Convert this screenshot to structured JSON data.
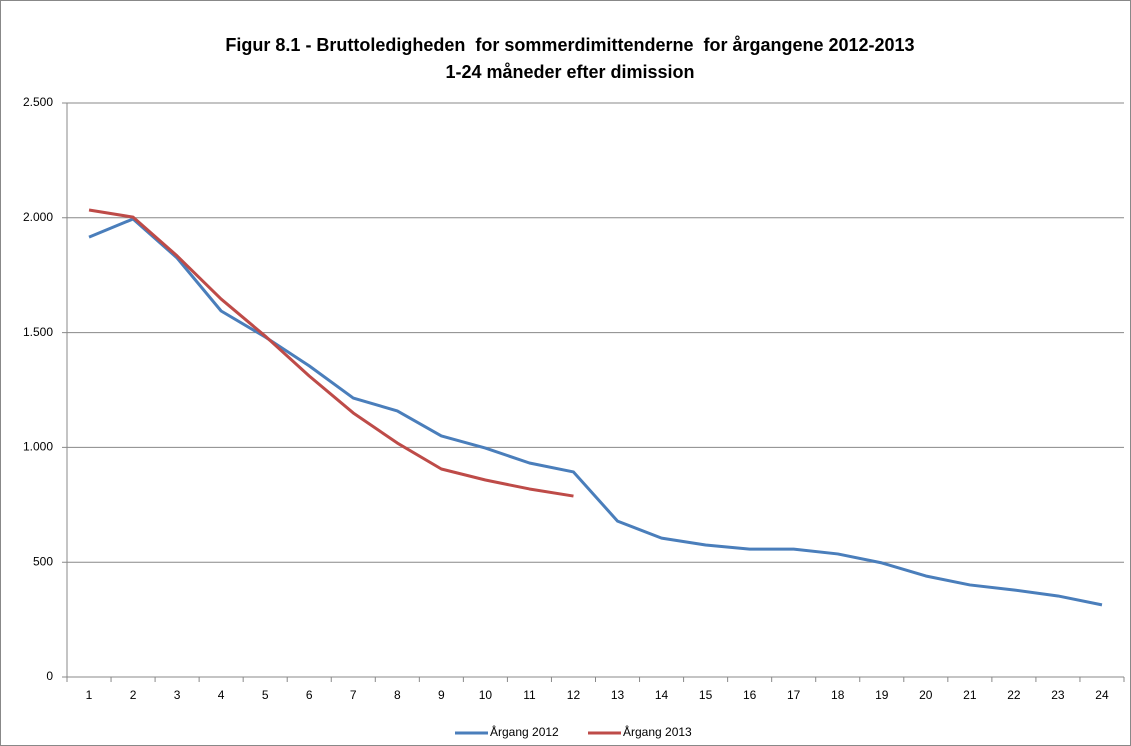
{
  "chart_data": {
    "type": "line",
    "title": "Figur 8.1 - Bruttoledigheden  for sommerdimittenderne  for årgangene 2012-2013",
    "subtitle": "1-24 måneder efter dimission",
    "categories": [
      "1",
      "2",
      "3",
      "4",
      "5",
      "6",
      "7",
      "8",
      "9",
      "10",
      "11",
      "12",
      "13",
      "14",
      "15",
      "16",
      "17",
      "18",
      "19",
      "20",
      "21",
      "22",
      "23",
      "24"
    ],
    "series": [
      {
        "name": "Årgang 2012",
        "color": "#4a7ebb",
        "values": [
          1916,
          1995,
          1825,
          1594,
          1481,
          1355,
          1215,
          1159,
          1050,
          997,
          932,
          893,
          679,
          605,
          575,
          557,
          557,
          536,
          497,
          440,
          401,
          379,
          353,
          314
        ]
      },
      {
        "name": "Årgang 2013",
        "color": "#be4b48",
        "values": [
          2034,
          2003,
          1834,
          1646,
          1485,
          1311,
          1150,
          1019,
          906,
          858,
          819,
          788,
          null,
          null,
          null,
          null,
          null,
          null,
          null,
          null,
          null,
          null,
          null,
          null
        ]
      }
    ],
    "ylim": [
      0,
      2500
    ],
    "yticks": [
      0,
      500,
      {
        "value": 1000,
        "label": "1.000"
      },
      {
        "value": 1500,
        "label": "1.500"
      },
      {
        "value": 2000,
        "label": "2.000"
      },
      {
        "value": 2500,
        "label": "2.500"
      }
    ],
    "grid": true,
    "legend": "bottom"
  }
}
